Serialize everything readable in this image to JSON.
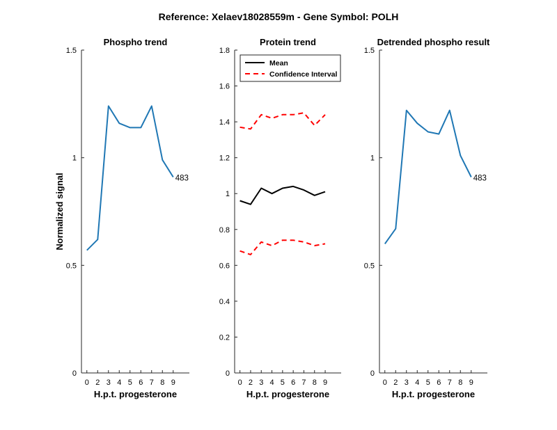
{
  "figure_title": "Reference:  Xelaev18028559m - Gene Symbol:  POLH",
  "chart_data": [
    {
      "id": "phospho",
      "type": "line",
      "title": "Phospho trend",
      "xlabel": "H.p.t. progesterone",
      "ylabel": "Normalized signal",
      "x_tick_labels": [
        "0",
        "2",
        "3",
        "4",
        "5",
        "6",
        "7",
        "8",
        "9"
      ],
      "xlim": [
        -0.5,
        9.5
      ],
      "ylim": [
        0,
        1.5
      ],
      "y_ticks": [
        0,
        0.5,
        1,
        1.5
      ],
      "y_tick_labels": [
        "0",
        "0.5",
        "1",
        "1.5"
      ],
      "grid": false,
      "series": [
        {
          "color": "#1f77b4",
          "style": "solid",
          "x": [
            0,
            1,
            2,
            3,
            4,
            5,
            6,
            7,
            8
          ],
          "y": [
            0.57,
            0.62,
            1.24,
            1.16,
            1.14,
            1.14,
            1.24,
            0.99,
            0.91
          ]
        }
      ],
      "annotations": [
        {
          "text": "483",
          "x": 8,
          "y": 0.91
        }
      ]
    },
    {
      "id": "protein",
      "type": "line",
      "title": "Protein trend",
      "xlabel": "H.p.t. progesterone",
      "ylabel": "",
      "x_tick_labels": [
        "0",
        "2",
        "3",
        "4",
        "5",
        "6",
        "7",
        "8",
        "9"
      ],
      "xlim": [
        -0.5,
        9.5
      ],
      "ylim": [
        0,
        1.8
      ],
      "y_ticks": [
        0,
        0.2,
        0.4,
        0.6,
        0.8,
        1,
        1.2,
        1.4,
        1.6,
        1.8
      ],
      "y_tick_labels": [
        "0",
        "0.2",
        "0.4",
        "0.6",
        "0.8",
        "1",
        "1.2",
        "1.4",
        "1.6",
        "1.8"
      ],
      "grid": false,
      "legend": {
        "position": "top-left",
        "entries": [
          "Mean",
          "Confidence Interval"
        ]
      },
      "series": [
        {
          "name": "Mean",
          "color": "#000000",
          "style": "solid",
          "x": [
            0,
            1,
            2,
            3,
            4,
            5,
            6,
            7,
            8
          ],
          "y": [
            0.96,
            0.94,
            1.03,
            1.0,
            1.03,
            1.04,
            1.02,
            0.99,
            1.01
          ]
        },
        {
          "name": "Confidence Interval",
          "color": "#ff0000",
          "style": "dashed",
          "x": [
            0,
            1,
            2,
            3,
            4,
            5,
            6,
            7,
            8
          ],
          "y": [
            1.37,
            1.36,
            1.44,
            1.42,
            1.44,
            1.44,
            1.45,
            1.38,
            1.44
          ]
        },
        {
          "name": "Confidence Interval",
          "color": "#ff0000",
          "style": "dashed",
          "legend": false,
          "x": [
            0,
            1,
            2,
            3,
            4,
            5,
            6,
            7,
            8
          ],
          "y": [
            0.68,
            0.66,
            0.73,
            0.71,
            0.74,
            0.74,
            0.73,
            0.71,
            0.72
          ]
        }
      ],
      "annotations": []
    },
    {
      "id": "detrended",
      "type": "line",
      "title": "Detrended phospho result",
      "xlabel": "H.p.t. progesterone",
      "ylabel": "",
      "x_tick_labels": [
        "0",
        "2",
        "3",
        "4",
        "5",
        "6",
        "7",
        "8",
        "9"
      ],
      "xlim": [
        -0.5,
        9.5
      ],
      "ylim": [
        0,
        1.5
      ],
      "y_ticks": [
        0,
        0.5,
        1,
        1.5
      ],
      "y_tick_labels": [
        "0",
        "0.5",
        "1",
        "1.5"
      ],
      "grid": false,
      "series": [
        {
          "color": "#1f77b4",
          "style": "solid",
          "x": [
            0,
            1,
            2,
            3,
            4,
            5,
            6,
            7,
            8
          ],
          "y": [
            0.6,
            0.67,
            1.22,
            1.16,
            1.12,
            1.11,
            1.22,
            1.01,
            0.91
          ]
        }
      ],
      "annotations": [
        {
          "text": "483",
          "x": 8,
          "y": 0.91
        }
      ]
    }
  ]
}
